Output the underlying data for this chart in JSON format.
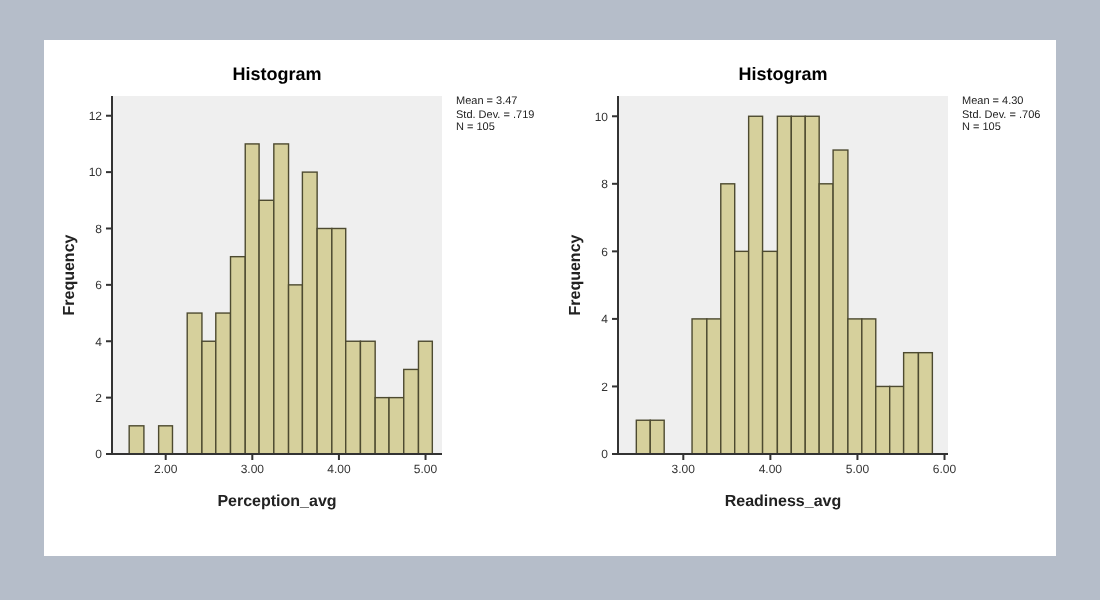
{
  "chart_data": [
    {
      "type": "histogram",
      "title": "Histogram",
      "xlabel": "Perception_avg",
      "ylabel": "Frequency",
      "color": "#d6d09c",
      "bins": [
        1.58,
        1.75,
        1.92,
        2.08,
        2.25,
        2.42,
        2.58,
        2.75,
        2.92,
        3.08,
        3.25,
        3.42,
        3.58,
        3.75,
        3.92,
        4.08,
        4.25,
        4.42,
        4.58,
        4.75,
        4.92,
        5.08
      ],
      "values": [
        1,
        0,
        1,
        0,
        5,
        4,
        5,
        7,
        11,
        9,
        11,
        6,
        10,
        8,
        8,
        4,
        4,
        2,
        2,
        3,
        4
      ],
      "xlim": [
        1.38,
        5.19
      ],
      "xticks": [
        {
          "value": 2,
          "label": "2.00"
        },
        {
          "value": 3,
          "label": "3.00"
        },
        {
          "value": 4,
          "label": "4.00"
        },
        {
          "value": 5,
          "label": "5.00"
        }
      ],
      "ylim": [
        0,
        12.7
      ],
      "yticks": [
        0,
        2,
        4,
        6,
        8,
        10,
        12
      ],
      "annotations": [
        "Mean = 3.47",
        "Std. Dev. = .719",
        "N = 105"
      ],
      "legend": false,
      "grid": false
    },
    {
      "type": "histogram",
      "title": "Histogram",
      "xlabel": "Readiness_avg",
      "ylabel": "Frequency",
      "color": "#d6d09c",
      "bins": [
        2.46,
        2.62,
        2.78,
        3.1,
        3.27,
        3.43,
        3.59,
        3.75,
        3.91,
        4.08,
        4.24,
        4.4,
        4.56,
        4.72,
        4.89,
        5.05,
        5.21,
        5.37,
        5.53,
        5.7,
        5.86
      ],
      "values": [
        1,
        1,
        0,
        4,
        4,
        8,
        6,
        10,
        6,
        10,
        10,
        10,
        8,
        9,
        4,
        4,
        2,
        2,
        3,
        3
      ],
      "xlim": [
        2.25,
        6.04
      ],
      "xticks": [
        {
          "value": 3,
          "label": "3.00"
        },
        {
          "value": 4,
          "label": "4.00"
        },
        {
          "value": 5,
          "label": "5.00"
        },
        {
          "value": 6,
          "label": "6.00"
        }
      ],
      "ylim": [
        0,
        10.6
      ],
      "yticks": [
        0,
        2,
        4,
        6,
        8,
        10
      ],
      "annotations": [
        "Mean = 4.30",
        "Std. Dev. = .706",
        "N = 105"
      ],
      "legend": false,
      "grid": false
    }
  ]
}
